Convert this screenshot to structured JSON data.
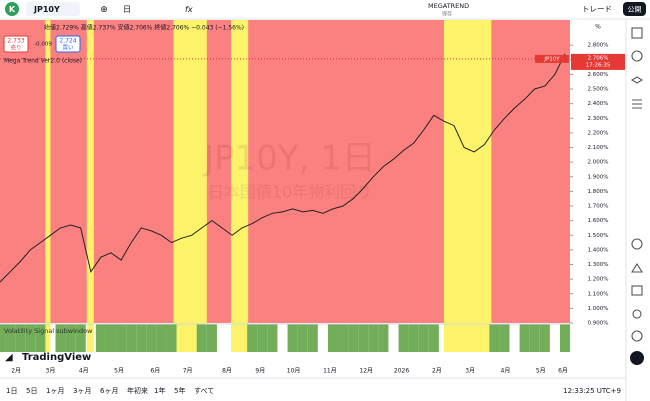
{
  "toolbar": {
    "avatar": "K",
    "symbol": "JP10Y",
    "interval": "日",
    "indicator_name": "MEGATREND",
    "indicator_status": "保存",
    "trade": "トレード",
    "publish": "公開"
  },
  "legend": {
    "ohlc": "始値2.729% 高値2.737% 安値2.706% 終値2.706% −0.043 (−1.56%)",
    "sell_price": "2.733",
    "sell": "売り",
    "spread": "-0.009",
    "buy_price": "2.724",
    "buy": "買い",
    "indicator": "Mega Trend Ver2.0 (close)"
  },
  "watermark": {
    "title": "JP10Y, 1日",
    "subtitle": "日本国債10年物利回り"
  },
  "chart_data": {
    "type": "line",
    "color": "#222222",
    "values": [
      1.18,
      1.25,
      1.32,
      1.4,
      1.45,
      1.5,
      1.55,
      1.57,
      1.55,
      1.25,
      1.35,
      1.38,
      1.33,
      1.45,
      1.55,
      1.53,
      1.5,
      1.45,
      1.48,
      1.5,
      1.55,
      1.6,
      1.55,
      1.5,
      1.55,
      1.58,
      1.62,
      1.65,
      1.66,
      1.68,
      1.66,
      1.67,
      1.65,
      1.68,
      1.7,
      1.75,
      1.82,
      1.9,
      1.97,
      2.02,
      2.08,
      2.13,
      2.22,
      2.32,
      2.28,
      2.25,
      2.1,
      2.07,
      2.12,
      2.22,
      2.3,
      2.37,
      2.43,
      2.5,
      2.52,
      2.6,
      2.74
    ],
    "ylim": [
      0.9,
      2.972
    ],
    "yticks": [
      {
        "value": 0.9,
        "label": "0.900%"
      },
      {
        "value": 1.0,
        "label": "1.000%"
      },
      {
        "value": 1.1,
        "label": "1.100%"
      },
      {
        "value": 1.2,
        "label": "1.200%"
      },
      {
        "value": 1.3,
        "label": "1.300%"
      },
      {
        "value": 1.4,
        "label": "1.400%"
      },
      {
        "value": 1.5,
        "label": "1.500%"
      },
      {
        "value": 1.6,
        "label": "1.600%"
      },
      {
        "value": 1.7,
        "label": "1.700%"
      },
      {
        "value": 1.8,
        "label": "1.800%"
      },
      {
        "value": 1.9,
        "label": "1.900%"
      },
      {
        "value": 2.0,
        "label": "2.000%"
      },
      {
        "value": 2.1,
        "label": "2.100%"
      },
      {
        "value": 2.2,
        "label": "2.200%"
      },
      {
        "value": 2.3,
        "label": "2.300%"
      },
      {
        "value": 2.4,
        "label": "2.400%"
      },
      {
        "value": 2.5,
        "label": "2.500%"
      },
      {
        "value": 2.6,
        "label": "2.600%"
      },
      {
        "value": 2.7,
        "label": "2.700%"
      },
      {
        "value": 2.8,
        "label": "2.800%"
      }
    ],
    "axis_unit": "%",
    "xticks": [
      {
        "value": 1.6,
        "label": "2月"
      },
      {
        "value": 5.0,
        "label": "3月"
      },
      {
        "value": 8.3,
        "label": "4月"
      },
      {
        "value": 11.8,
        "label": "5月"
      },
      {
        "value": 15.4,
        "label": "6月"
      },
      {
        "value": 18.6,
        "label": "7月"
      },
      {
        "value": 22.5,
        "label": "8月"
      },
      {
        "value": 25.8,
        "label": "9月"
      },
      {
        "value": 29.1,
        "label": "10月"
      },
      {
        "value": 32.7,
        "label": "11月"
      },
      {
        "value": 36.3,
        "label": "12月"
      },
      {
        "value": 39.8,
        "label": "2026"
      },
      {
        "value": 43.3,
        "label": "2月"
      },
      {
        "value": 46.6,
        "label": "3月"
      },
      {
        "value": 50.1,
        "label": "4月"
      },
      {
        "value": 53.6,
        "label": "5月"
      },
      {
        "value": 55.8,
        "label": "6月"
      }
    ],
    "last_price": {
      "value": 2.706,
      "label": "2.706%",
      "symbol": "JP10Y",
      "countdown": "17:26:35"
    },
    "background_color": "#fb8080",
    "zone_color": "#fdf36b",
    "zones": [
      [
        4.5,
        5.0
      ],
      [
        8.6,
        9.3
      ],
      [
        17.2,
        20.5
      ],
      [
        22.9,
        24.6
      ],
      [
        44.0,
        48.7
      ]
    ],
    "signal_title": "Volatility Signal subwindow",
    "signal_color": "#72ae5a",
    "signal": [
      1,
      1,
      1,
      1,
      1,
      0,
      1,
      1,
      1,
      0,
      1,
      1,
      1,
      1,
      1,
      1,
      1,
      1,
      0,
      0,
      1,
      1,
      0,
      0,
      0,
      1,
      1,
      1,
      0,
      1,
      1,
      1,
      0,
      1,
      1,
      1,
      1,
      1,
      1,
      0,
      1,
      1,
      1,
      1,
      0,
      0,
      0,
      0,
      0,
      1,
      1,
      0,
      1,
      1,
      1,
      0,
      1
    ]
  },
  "logo": "TradingView",
  "bottom_bar": {
    "ranges": [
      "1日",
      "5日",
      "1ヶ月",
      "3ヶ月",
      "6ヶ月",
      "年初来",
      "1年",
      "5年",
      "すべて"
    ],
    "clock": "12:33:25 UTC+9"
  }
}
